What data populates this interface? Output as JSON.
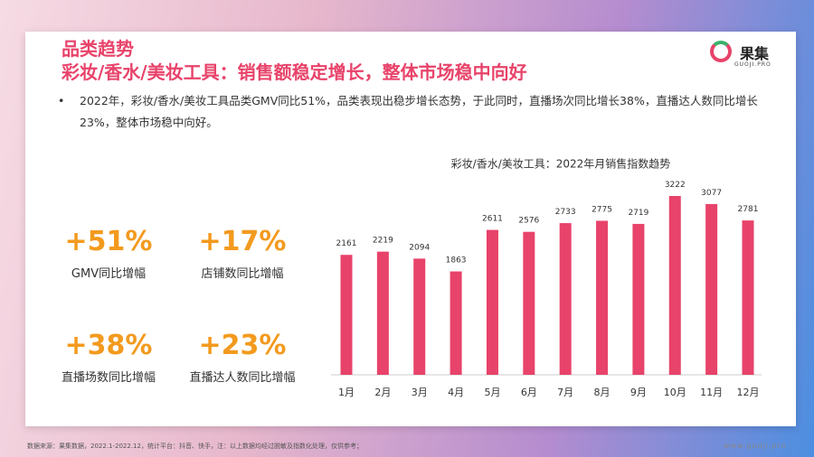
{
  "header": {
    "title": "品类趋势",
    "subtitle": "彩妆/香水/美妆工具：销售额稳定增长，整体市场稳中向好",
    "logo": "果集",
    "logo_sub": "GUOJI.PRO"
  },
  "summary": "2022年，彩妆/香水/美妆工具品类GMV同比51%，品类表现出稳步增长态势，于此同时，直播场次同比增长38%，直播达人数同比增长23%，整体市场稳中向好。",
  "stats": [
    {
      "value": "+51%",
      "label": "GMV同比增幅"
    },
    {
      "value": "+17%",
      "label": "店铺数同比增幅"
    },
    {
      "value": "+38%",
      "label": "直播场数同比增幅"
    },
    {
      "value": "+23%",
      "label": "直播达人数同比增幅"
    }
  ],
  "chart_data": {
    "type": "bar",
    "title": "彩妆/香水/美妆工具：2022年月销售指数趋势",
    "categories": [
      "1月",
      "2月",
      "3月",
      "4月",
      "5月",
      "6月",
      "7月",
      "8月",
      "9月",
      "10月",
      "11月",
      "12月"
    ],
    "values": [
      2161,
      2219,
      2094,
      1863,
      2611,
      2576,
      2733,
      2775,
      2719,
      3222,
      3077,
      2781
    ],
    "color": "#e8436a"
  },
  "footer": {
    "source": "数据来源：果集数据，2022.1-2022.12，统计平台：抖音、快手，注：以上数据均经过脱敏及指数化处理，仅供参考；",
    "url": "www.guoji.pro"
  }
}
